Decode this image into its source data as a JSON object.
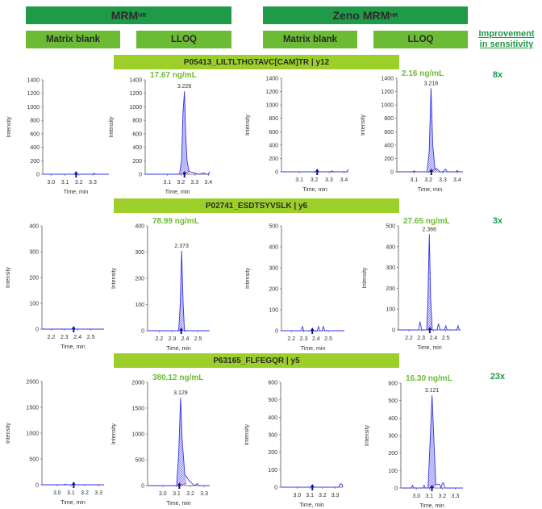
{
  "headers": {
    "mrm": {
      "label": "MRM",
      "sup": "HR"
    },
    "zeno": {
      "label": "Zeno MRM",
      "sup": "HR"
    },
    "columns": [
      "Matrix blank",
      "LLOQ",
      "Matrix blank",
      "LLOQ"
    ],
    "improvement": [
      "Improvement",
      "in sensitivity"
    ]
  },
  "colors": {
    "dark_green": "#1f9a48",
    "mid_green": "#6cbb34",
    "lime": "#9ccf2a",
    "conc": "#6cbb34",
    "trace": "#3333ee",
    "baseline": "#e05050"
  },
  "chart_data": [
    {
      "type": "line",
      "compound": "P05413_LILTLTHGTAVC[CAM]TR  | y12",
      "improvement": "8x",
      "panels": [
        {
          "conc": "",
          "ylim": [
            0,
            1400
          ],
          "yticks": [
            0,
            200,
            400,
            600,
            800,
            1000,
            1200,
            1400
          ],
          "xlim": [
            2.94,
            3.416
          ],
          "xticks": [
            "3.0",
            "3.1",
            "3.2",
            "3.3"
          ],
          "xlabel": "Time, min",
          "ylabel": "Intensity",
          "rt_marker": 3.18,
          "peak_label": "",
          "integration": null,
          "trace": [
            [
              2.94,
              0
            ],
            [
              3.3,
              0
            ],
            [
              3.31,
              15
            ],
            [
              3.32,
              0
            ],
            [
              3.416,
              0
            ]
          ]
        },
        {
          "conc": "17.67 ng/mL",
          "ylim": [
            0,
            1400
          ],
          "yticks": [
            0,
            200,
            400,
            600,
            800,
            1000,
            1200,
            1400
          ],
          "xlim": [
            2.94,
            3.41
          ],
          "xticks": [
            "3.1",
            "3.2",
            "3.3",
            "3.4"
          ],
          "xlabel": "Time, min",
          "ylabel": "Intensity",
          "rt_marker": 3.226,
          "peak_label": "3.226",
          "integration": [
            3.195,
            3.26
          ],
          "trace": [
            [
              2.94,
              0
            ],
            [
              3.19,
              0
            ],
            [
              3.205,
              200
            ],
            [
              3.215,
              900
            ],
            [
              3.226,
              1230
            ],
            [
              3.235,
              600
            ],
            [
              3.245,
              200
            ],
            [
              3.26,
              40
            ],
            [
              3.3,
              20
            ],
            [
              3.33,
              0
            ],
            [
              3.37,
              20
            ],
            [
              3.38,
              0
            ],
            [
              3.4,
              0
            ],
            [
              3.41,
              40
            ]
          ]
        },
        {
          "conc": "",
          "ylim": [
            0,
            1400
          ],
          "yticks": [
            0,
            200,
            400,
            600,
            800,
            1000,
            1200,
            1400
          ],
          "xlim": [
            2.98,
            3.43
          ],
          "xticks": [
            "3.1",
            "3.2",
            "3.3",
            "3.4"
          ],
          "xlabel": "Time, min",
          "ylabel": "Intensity",
          "rt_marker": 3.22,
          "peak_label": "",
          "integration": null,
          "trace": [
            [
              2.98,
              0
            ],
            [
              3.31,
              0
            ],
            [
              3.32,
              15
            ],
            [
              3.33,
              0
            ],
            [
              3.42,
              0
            ],
            [
              3.43,
              40
            ]
          ]
        },
        {
          "conc": "2.16 ng/mL",
          "ylim": [
            0,
            1400
          ],
          "yticks": [
            0,
            200,
            400,
            600,
            800,
            1000,
            1200,
            1400
          ],
          "xlim": [
            2.98,
            3.44
          ],
          "xticks": [
            "3.1",
            "3.2",
            "3.3",
            "3.4"
          ],
          "xlabel": "Time, min",
          "ylabel": "Intensity",
          "rt_marker": 3.22,
          "peak_label": "3.218",
          "integration": [
            3.195,
            3.26
          ],
          "trace": [
            [
              2.98,
              0
            ],
            [
              3.09,
              0
            ],
            [
              3.1,
              15
            ],
            [
              3.11,
              0
            ],
            [
              3.19,
              0
            ],
            [
              3.205,
              300
            ],
            [
              3.218,
              1250
            ],
            [
              3.23,
              400
            ],
            [
              3.245,
              50
            ],
            [
              3.26,
              40
            ],
            [
              3.28,
              0
            ],
            [
              3.3,
              0
            ],
            [
              3.32,
              40
            ],
            [
              3.33,
              0
            ],
            [
              3.39,
              0
            ],
            [
              3.4,
              20
            ],
            [
              3.41,
              0
            ],
            [
              3.44,
              0
            ]
          ]
        }
      ]
    },
    {
      "type": "line",
      "compound": "P02741_ESDTSYVSLK | y6",
      "improvement": "3x",
      "panels": [
        {
          "conc": "",
          "ylim": [
            0,
            400
          ],
          "yticks": [
            0,
            100,
            200,
            300,
            400
          ],
          "xlim": [
            2.13,
            2.6
          ],
          "xticks": [
            "2.2",
            "2.3",
            "2.4",
            "2.5"
          ],
          "xlabel": "Time, min",
          "ylabel": "Intensity",
          "rt_marker": 2.37,
          "peak_label": "",
          "integration": null,
          "trace": [
            [
              2.13,
              0
            ],
            [
              2.6,
              0
            ]
          ]
        },
        {
          "conc": "78.99 ng/mL",
          "ylim": [
            0,
            400
          ],
          "yticks": [
            0,
            100,
            200,
            300,
            400
          ],
          "xlim": [
            2.11,
            2.59
          ],
          "xticks": [
            "2.2",
            "2.3",
            "2.4",
            "2.5"
          ],
          "xlabel": "Time, min",
          "ylabel": "Intensity",
          "rt_marker": 2.37,
          "peak_label": "2.373",
          "integration": [
            2.35,
            2.395
          ],
          "trace": [
            [
              2.11,
              0
            ],
            [
              2.35,
              0
            ],
            [
              2.362,
              100
            ],
            [
              2.373,
              305
            ],
            [
              2.385,
              100
            ],
            [
              2.395,
              0
            ],
            [
              2.59,
              0
            ]
          ]
        },
        {
          "conc": "",
          "ylim": [
            0,
            500
          ],
          "yticks": [
            0,
            100,
            200,
            300,
            400,
            500
          ],
          "xlim": [
            2.12,
            2.63
          ],
          "xticks": [
            "2.2",
            "2.3",
            "2.4",
            "2.5"
          ],
          "xlabel": "Time, min",
          "ylabel": "Intensity",
          "rt_marker": 2.37,
          "peak_label": "",
          "integration": null,
          "trace": [
            [
              2.12,
              0
            ],
            [
              2.28,
              0
            ],
            [
              2.29,
              20
            ],
            [
              2.3,
              0
            ],
            [
              2.41,
              0
            ],
            [
              2.42,
              20
            ],
            [
              2.43,
              0
            ],
            [
              2.45,
              0
            ],
            [
              2.46,
              20
            ],
            [
              2.47,
              0
            ],
            [
              2.63,
              0
            ]
          ]
        },
        {
          "conc": "27.65 ng/mL",
          "ylim": [
            0,
            500
          ],
          "yticks": [
            0,
            100,
            200,
            300,
            400,
            500
          ],
          "xlim": [
            2.115,
            2.62
          ],
          "xticks": [
            "2.2",
            "2.3",
            "2.4",
            "2.5"
          ],
          "xlabel": "Time, min",
          "ylabel": "Intensity",
          "rt_marker": 2.37,
          "peak_label": "2.366",
          "integration": [
            2.345,
            2.39
          ],
          "trace": [
            [
              2.115,
              0
            ],
            [
              2.28,
              0
            ],
            [
              2.29,
              40
            ],
            [
              2.305,
              0
            ],
            [
              2.345,
              0
            ],
            [
              2.355,
              150
            ],
            [
              2.366,
              460
            ],
            [
              2.377,
              150
            ],
            [
              2.39,
              0
            ],
            [
              2.43,
              0
            ],
            [
              2.44,
              30
            ],
            [
              2.455,
              0
            ],
            [
              2.49,
              0
            ],
            [
              2.5,
              20
            ],
            [
              2.51,
              0
            ],
            [
              2.59,
              0
            ],
            [
              2.6,
              20
            ],
            [
              2.61,
              0
            ],
            [
              2.62,
              0
            ]
          ]
        }
      ]
    },
    {
      "type": "line",
      "compound": "P63165_FLFEGQR | y5",
      "improvement": "23x",
      "panels": [
        {
          "conc": "",
          "ylim": [
            0,
            2000
          ],
          "yticks": [
            0,
            500,
            1000,
            1500,
            2000
          ],
          "xlim": [
            2.89,
            3.34
          ],
          "xticks": [
            "3.0",
            "3.1",
            "3.2",
            "3.3"
          ],
          "xlabel": "Time, min",
          "ylabel": "Intensity",
          "rt_marker": 3.12,
          "peak_label": "",
          "integration": null,
          "trace": [
            [
              2.89,
              0
            ],
            [
              3.05,
              0
            ],
            [
              3.06,
              15
            ],
            [
              3.07,
              0
            ],
            [
              3.34,
              0
            ]
          ]
        },
        {
          "conc": "380.12 ng/mL",
          "ylim": [
            0,
            2000
          ],
          "yticks": [
            0,
            500,
            1000,
            1500,
            2000
          ],
          "xlim": [
            2.89,
            3.34
          ],
          "xticks": [
            "3.0",
            "3.1",
            "3.2",
            "3.3"
          ],
          "xlabel": "Time, min",
          "ylabel": "Intensity",
          "rt_marker": 3.12,
          "peak_label": "3.129",
          "integration": [
            3.1,
            3.17
          ],
          "trace": [
            [
              2.89,
              0
            ],
            [
              3.1,
              0
            ],
            [
              3.115,
              600
            ],
            [
              3.129,
              1700
            ],
            [
              3.14,
              900
            ],
            [
              3.16,
              200
            ],
            [
              3.17,
              180
            ],
            [
              3.19,
              100
            ],
            [
              3.22,
              20
            ],
            [
              3.23,
              0
            ],
            [
              3.25,
              40
            ],
            [
              3.26,
              0
            ],
            [
              3.34,
              0
            ]
          ]
        },
        {
          "conc": "",
          "ylim": [
            0,
            600
          ],
          "yticks": [
            0,
            100,
            200,
            300,
            400,
            500,
            600
          ],
          "xlim": [
            2.87,
            3.36
          ],
          "xticks": [
            "3.0",
            "3.1",
            "3.2",
            "3.3"
          ],
          "xlabel": "Time, min",
          "ylabel": "Intensity",
          "rt_marker": 3.12,
          "peak_label": "",
          "integration": null,
          "trace": [
            [
              2.87,
              0
            ],
            [
              3.33,
              0
            ],
            [
              3.34,
              20
            ],
            [
              3.355,
              15
            ],
            [
              3.36,
              0
            ]
          ]
        },
        {
          "conc": "16.30 ng/mL",
          "ylim": [
            0,
            600
          ],
          "yticks": [
            0,
            100,
            200,
            300,
            400,
            500,
            600
          ],
          "xlim": [
            2.88,
            3.36
          ],
          "xticks": [
            "3.0",
            "3.1",
            "3.2",
            "3.3"
          ],
          "xlabel": "Time, min",
          "ylabel": "Intensity",
          "rt_marker": 3.12,
          "peak_label": "3.121",
          "integration": [
            3.09,
            3.15
          ],
          "trace": [
            [
              2.88,
              0
            ],
            [
              2.96,
              0
            ],
            [
              2.97,
              15
            ],
            [
              2.98,
              0
            ],
            [
              3.05,
              0
            ],
            [
              3.06,
              15
            ],
            [
              3.07,
              0
            ],
            [
              3.09,
              0
            ],
            [
              3.105,
              250
            ],
            [
              3.121,
              530
            ],
            [
              3.137,
              250
            ],
            [
              3.15,
              20
            ],
            [
              3.17,
              20
            ],
            [
              3.18,
              20
            ],
            [
              3.19,
              0
            ],
            [
              3.2,
              25
            ],
            [
              3.21,
              30
            ],
            [
              3.22,
              0
            ],
            [
              3.36,
              0
            ]
          ]
        }
      ]
    }
  ]
}
